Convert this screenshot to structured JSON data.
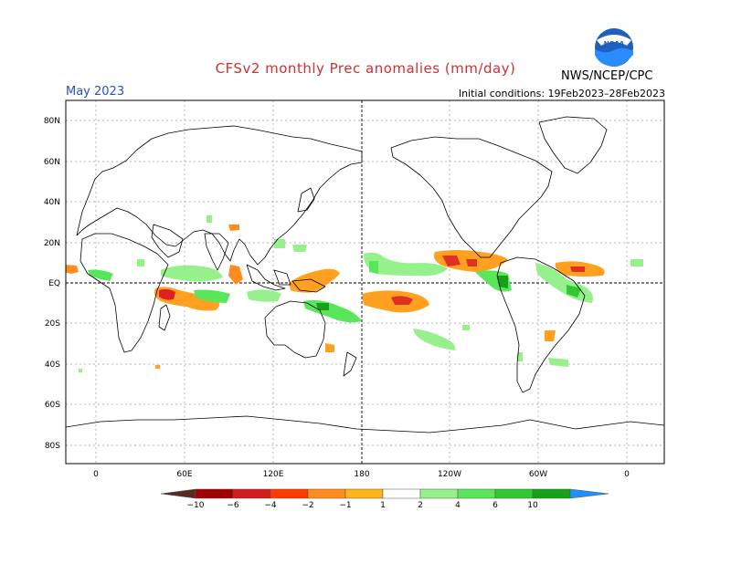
{
  "header": {
    "title": "CFSv2 monthly Prec anomalies (mm/day)",
    "month": "May 2023",
    "initial_conditions": "Initial conditions: 19Feb2023–28Feb2023",
    "agency": "NWS/NCEP/CPC",
    "logo_text": "NOAA"
  },
  "map": {
    "lat_labels": [
      "80N",
      "60N",
      "40N",
      "20N",
      "EQ",
      "20S",
      "40S",
      "60S",
      "80S"
    ],
    "lon_labels": [
      "0",
      "60E",
      "120E",
      "180",
      "120W",
      "60W",
      "0"
    ]
  },
  "colorbar": {
    "labels": [
      "−10",
      "−6",
      "−4",
      "−2",
      "−1",
      "1",
      "2",
      "4",
      "6",
      "10"
    ],
    "colors": [
      "#5a2a1e",
      "#a00000",
      "#d01c1c",
      "#ff3c00",
      "#ff8c1e",
      "#ffb41e",
      "#ffffff",
      "#96f08c",
      "#5ae65a",
      "#32c832",
      "#18a018",
      "#1e90ff"
    ]
  }
}
